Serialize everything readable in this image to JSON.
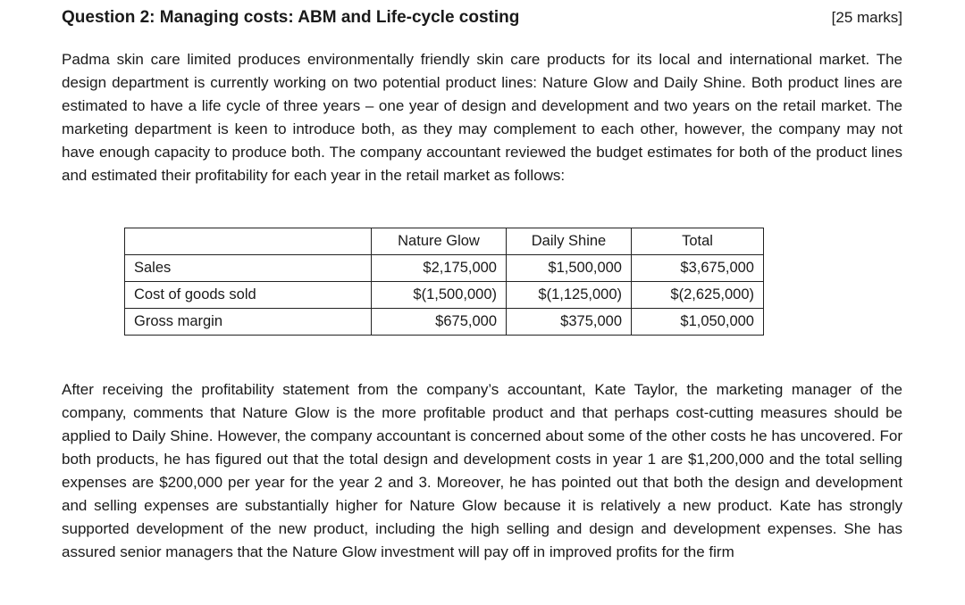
{
  "question": {
    "title": "Question 2: Managing costs: ABM and Life-cycle costing",
    "marks": "[25 marks]"
  },
  "paragraphs": {
    "intro": "Padma skin care limited produces environmentally friendly skin care products for its local and international market. The design department is currently working on two potential product lines: Nature Glow and Daily Shine. Both product lines are estimated to have a life cycle of three years – one year of design and development and two years on the retail market. The marketing department is keen to introduce both, as they may complement to each other, however, the company may not have enough capacity to produce both. The company accountant reviewed the budget estimates for both of the product lines and estimated their profitability for each year in the retail market as follows:",
    "followup": "After receiving the profitability statement from the company’s accountant, Kate Taylor, the marketing manager of the company, comments that Nature Glow is the more profitable product and that perhaps cost-cutting measures should be applied to Daily Shine. However, the company accountant is concerned about some of the other costs he has uncovered. For both products, he has figured out that the total design and development costs in year 1 are $1,200,000 and the total selling expenses are $200,000 per year for the year 2 and 3. Moreover, he has pointed out that both the design and development and selling expenses are substantially higher for Nature Glow because it is relatively a new product. Kate has strongly supported development of the new product, including the high selling and design and development expenses. She has assured senior managers that the Nature Glow investment will pay off in improved profits for the firm"
  },
  "table": {
    "headers": [
      "",
      "Nature Glow",
      "Daily Shine",
      "Total"
    ],
    "rows": [
      {
        "label": "Sales",
        "nature_glow": "$2,175,000",
        "daily_shine": "$1,500,000",
        "total": "$3,675,000"
      },
      {
        "label": "Cost of goods sold",
        "nature_glow": "$(1,500,000)",
        "daily_shine": "$(1,125,000)",
        "total": "$(2,625,000)"
      },
      {
        "label": "Gross margin",
        "nature_glow": "$675,000",
        "daily_shine": "$375,000",
        "total": "$1,050,000"
      }
    ]
  }
}
